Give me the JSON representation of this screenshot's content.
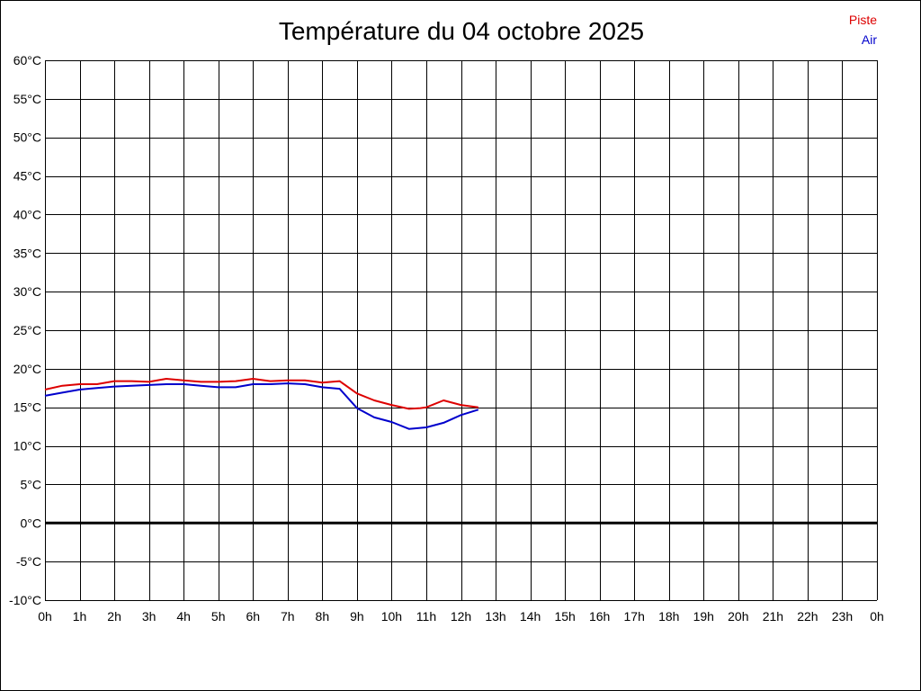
{
  "colors": {
    "background": "#ffffff",
    "grid": "#000000",
    "zero_line": "#000000",
    "piste": "#dd0000",
    "air": "#0000cc"
  },
  "chart_data": {
    "type": "line",
    "title": "Température du 04 octobre 2025",
    "xlabel": "",
    "ylabel": "",
    "x_unit": "hours",
    "xlim": [
      0,
      24
    ],
    "ylim": [
      -10,
      60
    ],
    "grid": true,
    "legend_position": "top-right",
    "x_ticks": [
      0,
      1,
      2,
      3,
      4,
      5,
      6,
      7,
      8,
      9,
      10,
      11,
      12,
      13,
      14,
      15,
      16,
      17,
      18,
      19,
      20,
      21,
      22,
      23,
      24
    ],
    "x_tick_labels": [
      "0h",
      "1h",
      "2h",
      "3h",
      "4h",
      "5h",
      "6h",
      "7h",
      "8h",
      "9h",
      "10h",
      "11h",
      "12h",
      "13h",
      "14h",
      "15h",
      "16h",
      "17h",
      "18h",
      "19h",
      "20h",
      "21h",
      "22h",
      "23h",
      "0h"
    ],
    "y_ticks": [
      60,
      55,
      50,
      45,
      40,
      35,
      30,
      25,
      20,
      15,
      10,
      5,
      0,
      -5,
      -10
    ],
    "y_tick_labels": [
      "60°C",
      "55°C",
      "50°C",
      "45°C",
      "40°C",
      "35°C",
      "30°C",
      "25°C",
      "20°C",
      "15°C",
      "10°C",
      "5°C",
      "0°C",
      "-5°C",
      "-10°C"
    ],
    "series": [
      {
        "name": "Piste",
        "color": "#dd0000",
        "x": [
          0,
          0.5,
          1,
          1.5,
          2,
          2.5,
          3,
          3.5,
          4,
          4.5,
          5,
          5.5,
          6,
          6.5,
          7,
          7.5,
          8,
          8.5,
          9,
          9.5,
          10,
          10.5,
          10.83,
          11,
          11.5,
          12,
          12.5
        ],
        "y": [
          17.3,
          17.8,
          18.0,
          18.0,
          18.4,
          18.4,
          18.3,
          18.7,
          18.5,
          18.3,
          18.3,
          18.4,
          18.7,
          18.4,
          18.5,
          18.5,
          18.2,
          18.4,
          16.8,
          15.9,
          15.3,
          14.8,
          14.9,
          15.0,
          15.9,
          15.3,
          15.0
        ]
      },
      {
        "name": "Air",
        "color": "#0000cc",
        "x": [
          0,
          0.5,
          1,
          1.5,
          2,
          2.5,
          3,
          3.5,
          4,
          4.5,
          5,
          5.5,
          6,
          6.5,
          7,
          7.5,
          8,
          8.5,
          9,
          9.5,
          10,
          10.5,
          11,
          11.5,
          12,
          12.5
        ],
        "y": [
          16.5,
          16.9,
          17.3,
          17.5,
          17.7,
          17.8,
          17.9,
          18.0,
          18.0,
          17.8,
          17.6,
          17.6,
          18.0,
          18.0,
          18.1,
          18.0,
          17.6,
          17.4,
          14.9,
          13.7,
          13.1,
          12.2,
          12.4,
          13.0,
          14.0,
          14.7
        ]
      }
    ]
  }
}
